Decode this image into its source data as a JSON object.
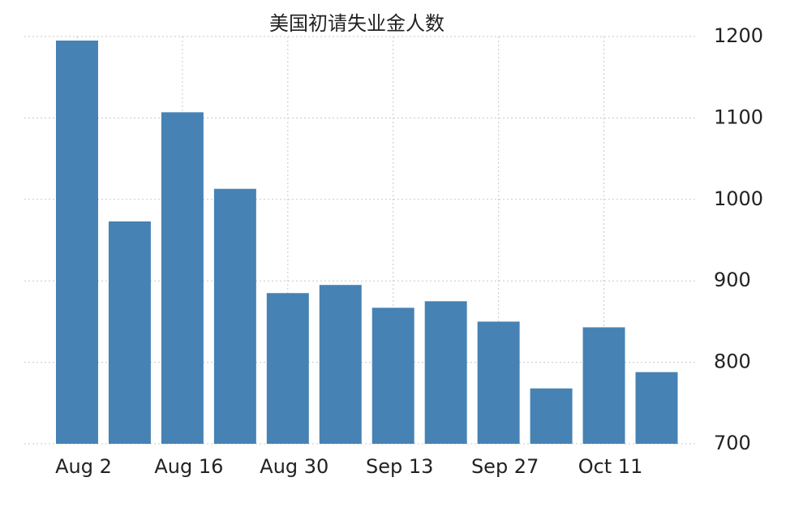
{
  "chart_data": {
    "type": "bar",
    "title": "美国初请失业金人数",
    "categories": [
      "Aug 2",
      null,
      "Aug 16",
      null,
      "Aug 30",
      null,
      "Sep 13",
      null,
      "Sep 27",
      null,
      "Oct 11",
      null
    ],
    "values": [
      1195,
      973,
      1107,
      1013,
      885,
      895,
      867,
      875,
      850,
      768,
      843,
      788
    ],
    "color": "#4682b4",
    "ylim": [
      700,
      1200
    ],
    "yticks": [
      700,
      800,
      900,
      1000,
      1100,
      1200
    ],
    "grid": true
  }
}
